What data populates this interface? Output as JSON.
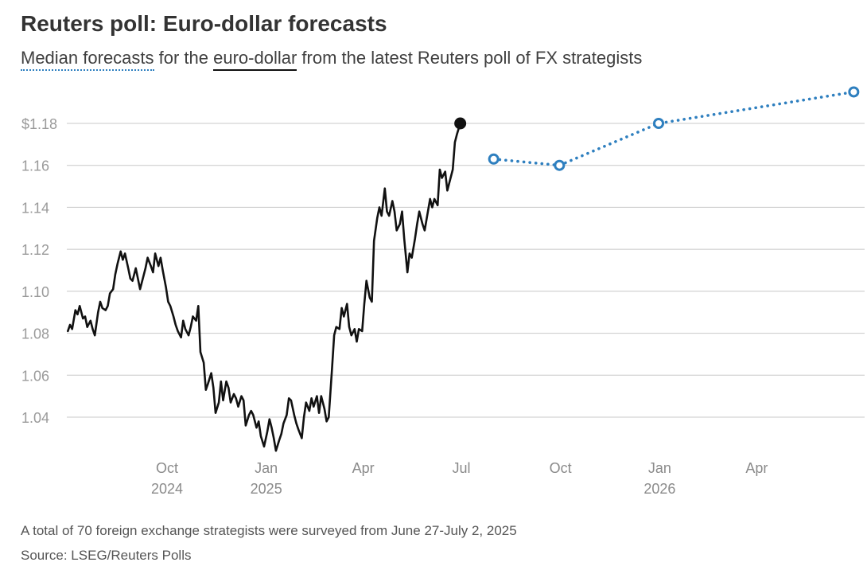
{
  "title": "Reuters poll: Euro-dollar forecasts",
  "subtitle": {
    "part1": "Median forecasts",
    "part2": " for the ",
    "part3": "euro-dollar",
    "part4": " from the latest Reuters poll of FX strategists"
  },
  "footnote": "A total of 70 foreign exchange strategists were surveyed from June 27-July 2, 2025",
  "source": "Source: LSEG/Reuters Polls",
  "colors": {
    "actual": "#111111",
    "forecast": "#2e7fbf",
    "grid": "#c8c8c8",
    "tick_text": "#9a9a9a",
    "axis_text": "#8a8a8a"
  },
  "chart_data": {
    "type": "line",
    "ylim": [
      1.02,
      1.195
    ],
    "xlim": [
      "2024-07-01",
      "2026-06-30"
    ],
    "yticks": [
      {
        "value": 1.04,
        "label": "1.04"
      },
      {
        "value": 1.06,
        "label": "1.06"
      },
      {
        "value": 1.08,
        "label": "1.08"
      },
      {
        "value": 1.1,
        "label": "1.10"
      },
      {
        "value": 1.12,
        "label": "1.12"
      },
      {
        "value": 1.14,
        "label": "1.14"
      },
      {
        "value": 1.16,
        "label": "1.16"
      },
      {
        "value": 1.18,
        "label": "$1.18"
      }
    ],
    "xticks": [
      {
        "date": "2024-10-01",
        "label": "Oct",
        "sub": "2024"
      },
      {
        "date": "2025-01-01",
        "label": "Jan",
        "sub": "2025"
      },
      {
        "date": "2025-04-01",
        "label": "Apr",
        "sub": ""
      },
      {
        "date": "2025-07-01",
        "label": "Jul",
        "sub": ""
      },
      {
        "date": "2025-10-01",
        "label": "Oct",
        "sub": ""
      },
      {
        "date": "2026-01-01",
        "label": "Jan",
        "sub": "2026"
      },
      {
        "date": "2026-04-01",
        "label": "Apr",
        "sub": ""
      }
    ],
    "series": [
      {
        "style": "solid",
        "points": [
          [
            "2024-07-01",
            1.081
          ],
          [
            "2024-07-03",
            1.084
          ],
          [
            "2024-07-05",
            1.082
          ],
          [
            "2024-07-08",
            1.091
          ],
          [
            "2024-07-10",
            1.089
          ],
          [
            "2024-07-12",
            1.093
          ],
          [
            "2024-07-15",
            1.087
          ],
          [
            "2024-07-17",
            1.088
          ],
          [
            "2024-07-19",
            1.083
          ],
          [
            "2024-07-22",
            1.086
          ],
          [
            "2024-07-24",
            1.082
          ],
          [
            "2024-07-26",
            1.079
          ],
          [
            "2024-07-29",
            1.09
          ],
          [
            "2024-07-31",
            1.095
          ],
          [
            "2024-08-02",
            1.092
          ],
          [
            "2024-08-05",
            1.091
          ],
          [
            "2024-08-07",
            1.093
          ],
          [
            "2024-08-09",
            1.099
          ],
          [
            "2024-08-12",
            1.101
          ],
          [
            "2024-08-14",
            1.108
          ],
          [
            "2024-08-16",
            1.113
          ],
          [
            "2024-08-19",
            1.119
          ],
          [
            "2024-08-21",
            1.115
          ],
          [
            "2024-08-23",
            1.118
          ],
          [
            "2024-08-26",
            1.111
          ],
          [
            "2024-08-28",
            1.106
          ],
          [
            "2024-08-30",
            1.105
          ],
          [
            "2024-09-02",
            1.111
          ],
          [
            "2024-09-04",
            1.106
          ],
          [
            "2024-09-06",
            1.101
          ],
          [
            "2024-09-09",
            1.107
          ],
          [
            "2024-09-11",
            1.111
          ],
          [
            "2024-09-13",
            1.116
          ],
          [
            "2024-09-16",
            1.112
          ],
          [
            "2024-09-18",
            1.109
          ],
          [
            "2024-09-20",
            1.118
          ],
          [
            "2024-09-23",
            1.112
          ],
          [
            "2024-09-25",
            1.116
          ],
          [
            "2024-09-27",
            1.11
          ],
          [
            "2024-09-30",
            1.102
          ],
          [
            "2024-10-02",
            1.095
          ],
          [
            "2024-10-04",
            1.093
          ],
          [
            "2024-10-07",
            1.088
          ],
          [
            "2024-10-09",
            1.084
          ],
          [
            "2024-10-11",
            1.081
          ],
          [
            "2024-10-14",
            1.078
          ],
          [
            "2024-10-16",
            1.086
          ],
          [
            "2024-10-18",
            1.082
          ],
          [
            "2024-10-21",
            1.079
          ],
          [
            "2024-10-23",
            1.083
          ],
          [
            "2024-10-25",
            1.088
          ],
          [
            "2024-10-28",
            1.086
          ],
          [
            "2024-10-30",
            1.093
          ],
          [
            "2024-11-01",
            1.071
          ],
          [
            "2024-11-04",
            1.066
          ],
          [
            "2024-11-06",
            1.053
          ],
          [
            "2024-11-08",
            1.056
          ],
          [
            "2024-11-11",
            1.061
          ],
          [
            "2024-11-13",
            1.054
          ],
          [
            "2024-11-15",
            1.042
          ],
          [
            "2024-11-18",
            1.047
          ],
          [
            "2024-11-20",
            1.057
          ],
          [
            "2024-11-22",
            1.048
          ],
          [
            "2024-11-25",
            1.057
          ],
          [
            "2024-11-27",
            1.054
          ],
          [
            "2024-11-29",
            1.047
          ],
          [
            "2024-12-02",
            1.051
          ],
          [
            "2024-12-04",
            1.049
          ],
          [
            "2024-12-06",
            1.045
          ],
          [
            "2024-12-09",
            1.05
          ],
          [
            "2024-12-11",
            1.048
          ],
          [
            "2024-12-13",
            1.036
          ],
          [
            "2024-12-16",
            1.041
          ],
          [
            "2024-12-18",
            1.043
          ],
          [
            "2024-12-20",
            1.041
          ],
          [
            "2024-12-23",
            1.035
          ],
          [
            "2024-12-25",
            1.038
          ],
          [
            "2024-12-27",
            1.031
          ],
          [
            "2024-12-30",
            1.026
          ],
          [
            "2025-01-02",
            1.033
          ],
          [
            "2025-01-04",
            1.039
          ],
          [
            "2025-01-06",
            1.035
          ],
          [
            "2025-01-08",
            1.03
          ],
          [
            "2025-01-10",
            1.024
          ],
          [
            "2025-01-13",
            1.029
          ],
          [
            "2025-01-15",
            1.032
          ],
          [
            "2025-01-17",
            1.037
          ],
          [
            "2025-01-20",
            1.041
          ],
          [
            "2025-01-22",
            1.049
          ],
          [
            "2025-01-24",
            1.048
          ],
          [
            "2025-01-27",
            1.041
          ],
          [
            "2025-01-29",
            1.037
          ],
          [
            "2025-01-31",
            1.034
          ],
          [
            "2025-02-03",
            1.03
          ],
          [
            "2025-02-05",
            1.04
          ],
          [
            "2025-02-07",
            1.047
          ],
          [
            "2025-02-10",
            1.043
          ],
          [
            "2025-02-12",
            1.049
          ],
          [
            "2025-02-14",
            1.045
          ],
          [
            "2025-02-17",
            1.05
          ],
          [
            "2025-02-19",
            1.042
          ],
          [
            "2025-02-21",
            1.05
          ],
          [
            "2025-02-24",
            1.044
          ],
          [
            "2025-02-26",
            1.038
          ],
          [
            "2025-02-28",
            1.04
          ],
          [
            "2025-03-03",
            1.063
          ],
          [
            "2025-03-05",
            1.079
          ],
          [
            "2025-03-07",
            1.083
          ],
          [
            "2025-03-10",
            1.082
          ],
          [
            "2025-03-12",
            1.092
          ],
          [
            "2025-03-14",
            1.088
          ],
          [
            "2025-03-17",
            1.094
          ],
          [
            "2025-03-19",
            1.083
          ],
          [
            "2025-03-21",
            1.079
          ],
          [
            "2025-03-24",
            1.082
          ],
          [
            "2025-03-26",
            1.076
          ],
          [
            "2025-03-28",
            1.082
          ],
          [
            "2025-03-31",
            1.081
          ],
          [
            "2025-04-02",
            1.094
          ],
          [
            "2025-04-04",
            1.105
          ],
          [
            "2025-04-07",
            1.097
          ],
          [
            "2025-04-09",
            1.095
          ],
          [
            "2025-04-11",
            1.124
          ],
          [
            "2025-04-14",
            1.135
          ],
          [
            "2025-04-16",
            1.14
          ],
          [
            "2025-04-18",
            1.136
          ],
          [
            "2025-04-21",
            1.149
          ],
          [
            "2025-04-23",
            1.138
          ],
          [
            "2025-04-25",
            1.136
          ],
          [
            "2025-04-28",
            1.143
          ],
          [
            "2025-04-30",
            1.138
          ],
          [
            "2025-05-02",
            1.129
          ],
          [
            "2025-05-05",
            1.132
          ],
          [
            "2025-05-07",
            1.138
          ],
          [
            "2025-05-09",
            1.125
          ],
          [
            "2025-05-12",
            1.109
          ],
          [
            "2025-05-14",
            1.118
          ],
          [
            "2025-05-16",
            1.116
          ],
          [
            "2025-05-19",
            1.125
          ],
          [
            "2025-05-21",
            1.132
          ],
          [
            "2025-05-23",
            1.138
          ],
          [
            "2025-05-26",
            1.132
          ],
          [
            "2025-05-28",
            1.129
          ],
          [
            "2025-05-30",
            1.135
          ],
          [
            "2025-06-02",
            1.144
          ],
          [
            "2025-06-04",
            1.14
          ],
          [
            "2025-06-06",
            1.144
          ],
          [
            "2025-06-09",
            1.141
          ],
          [
            "2025-06-11",
            1.158
          ],
          [
            "2025-06-13",
            1.154
          ],
          [
            "2025-06-16",
            1.157
          ],
          [
            "2025-06-18",
            1.148
          ],
          [
            "2025-06-20",
            1.152
          ],
          [
            "2025-06-23",
            1.158
          ],
          [
            "2025-06-25",
            1.171
          ],
          [
            "2025-06-27",
            1.175
          ],
          [
            "2025-06-30",
            1.18
          ]
        ]
      },
      {
        "style": "dotted",
        "points": [
          [
            "2025-07-31",
            1.163
          ],
          [
            "2025-09-30",
            1.16
          ],
          [
            "2025-12-31",
            1.18
          ],
          [
            "2026-06-30",
            1.195
          ]
        ]
      }
    ]
  }
}
